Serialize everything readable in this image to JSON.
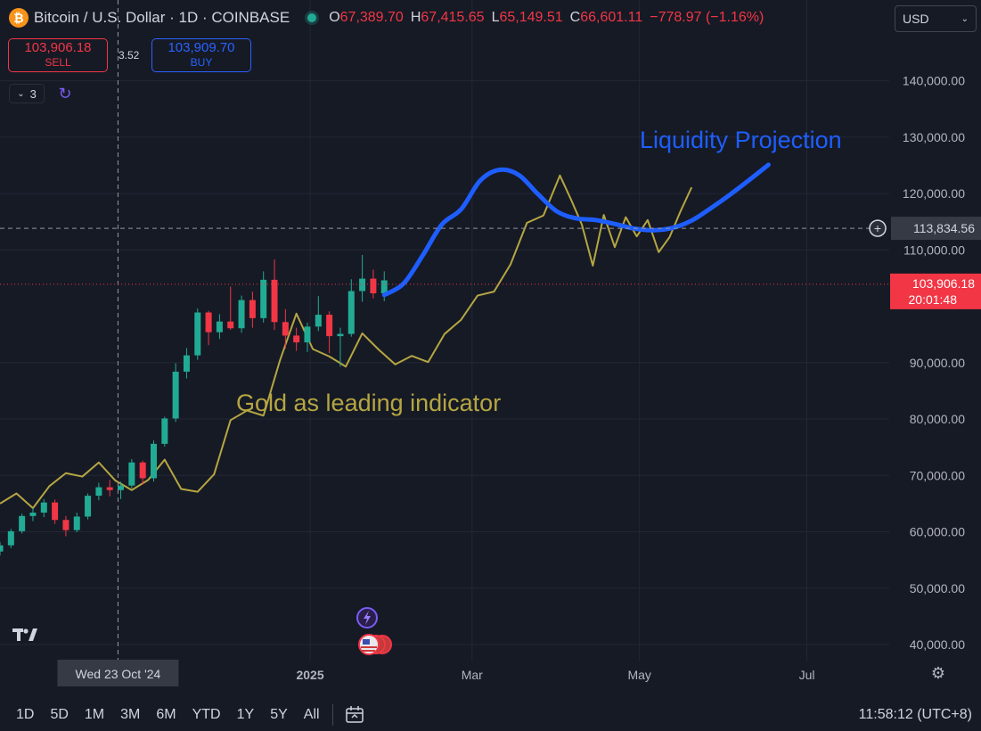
{
  "header": {
    "symbol_icon": "bitcoin-icon",
    "title": "Bitcoin / U.S. Dollar · 1D · COINBASE",
    "ohlc": {
      "o_label": "O",
      "o": "67,389.70",
      "h_label": "H",
      "h": "67,415.65",
      "l_label": "L",
      "l": "65,149.51",
      "c_label": "C",
      "c": "66,601.11",
      "change": "−778.97 (−1.16%)"
    },
    "currency": "USD"
  },
  "trade": {
    "sell_price": "103,906.18",
    "sell_label": "SELL",
    "spread": "3.52",
    "buy_price": "103,909.70",
    "buy_label": "BUY"
  },
  "indicators": {
    "count": "3"
  },
  "toolbar": {
    "timeframes": [
      "1D",
      "5D",
      "1M",
      "3M",
      "6M",
      "YTD",
      "1Y",
      "5Y",
      "All"
    ],
    "clock": "11:58:12 (UTC+8)"
  },
  "colors": {
    "background": "#161a25",
    "up": "#22ab94",
    "down": "#f23645",
    "gold": "#b5a642",
    "projection": "#1e5eff"
  },
  "chart_data": {
    "type": "line",
    "title": "",
    "price_axis": {
      "ylim": [
        37000,
        148000
      ],
      "ticks": [
        {
          "value": 140000,
          "label": "140,000.00"
        },
        {
          "value": 130000,
          "label": "130,000.00"
        },
        {
          "value": 120000,
          "label": "120,000.00"
        },
        {
          "value": 110000,
          "label": "110,000.00"
        },
        {
          "value": 90000,
          "label": "90,000.00"
        },
        {
          "value": 80000,
          "label": "80,000.00"
        },
        {
          "value": 70000,
          "label": "70,000.00"
        },
        {
          "value": 60000,
          "label": "60,000.00"
        },
        {
          "value": 50000,
          "label": "50,000.00"
        },
        {
          "value": 40000,
          "label": "40,000.00"
        }
      ]
    },
    "time_axis": {
      "xlim": [
        "2024-09-10",
        "2025-07-31"
      ],
      "ticks": [
        {
          "date": "2025-01-01",
          "label": "2025",
          "bold": true
        },
        {
          "date": "2025-03-01",
          "label": "Mar"
        },
        {
          "date": "2025-05-01",
          "label": "May"
        },
        {
          "date": "2025-07-01",
          "label": "Jul"
        }
      ]
    },
    "crosshair": {
      "date": "2024-10-23",
      "date_label": "Wed 23 Oct '24",
      "price": 113834.56,
      "price_label": "113,834.56"
    },
    "current_price": {
      "price": 103906.18,
      "price_label": "103,906.18",
      "countdown": "20:01:48"
    },
    "annotations": [
      {
        "text": "Gold as leading indicator",
        "color": "#b5a642"
      },
      {
        "text": "Liquidity Projection",
        "color": "#1e5eff"
      }
    ],
    "series": [
      {
        "kind": "candlestick",
        "ohlc": [
          [
            "2024-09-10",
            56500,
            58200,
            55800,
            57600
          ],
          [
            "2024-09-14",
            57600,
            60500,
            57100,
            60100
          ],
          [
            "2024-09-18",
            60100,
            63200,
            59700,
            62800
          ],
          [
            "2024-09-22",
            62800,
            64200,
            61900,
            63400
          ],
          [
            "2024-09-26",
            63400,
            65800,
            62600,
            65200
          ],
          [
            "2024-09-30",
            65200,
            65700,
            61400,
            62100
          ],
          [
            "2024-10-04",
            62100,
            62800,
            59200,
            60300
          ],
          [
            "2024-10-08",
            60300,
            63400,
            59900,
            62700
          ],
          [
            "2024-10-12",
            62700,
            66800,
            62200,
            66400
          ],
          [
            "2024-10-16",
            66400,
            68700,
            65600,
            67900
          ],
          [
            "2024-10-20",
            67900,
            69200,
            66300,
            67400
          ],
          [
            "2024-10-24",
            67400,
            68900,
            65800,
            68200
          ],
          [
            "2024-10-28",
            68200,
            72900,
            67700,
            72300
          ],
          [
            "2024-11-01",
            72300,
            72600,
            68400,
            69500
          ],
          [
            "2024-11-05",
            69500,
            76200,
            68900,
            75600
          ],
          [
            "2024-11-09",
            75600,
            80400,
            75100,
            80100
          ],
          [
            "2024-11-13",
            80100,
            89900,
            79500,
            88400
          ],
          [
            "2024-11-17",
            88400,
            92600,
            87200,
            91300
          ],
          [
            "2024-11-21",
            91300,
            99600,
            90500,
            98900
          ],
          [
            "2024-11-25",
            98900,
            99200,
            93100,
            95400
          ],
          [
            "2024-11-29",
            95400,
            98600,
            94200,
            97300
          ],
          [
            "2024-12-03",
            97300,
            103500,
            95800,
            96100
          ],
          [
            "2024-12-07",
            96100,
            101900,
            95300,
            101100
          ],
          [
            "2024-12-11",
            101100,
            102600,
            96200,
            97900
          ],
          [
            "2024-12-15",
            97900,
            106200,
            97100,
            104700
          ],
          [
            "2024-12-19",
            104700,
            108300,
            95800,
            97200
          ],
          [
            "2024-12-23",
            97200,
            99500,
            92500,
            94800
          ],
          [
            "2024-12-27",
            94800,
            96200,
            92100,
            93600
          ],
          [
            "2024-12-31",
            93600,
            97100,
            91900,
            96400
          ],
          [
            "2025-01-04",
            96400,
            101800,
            95600,
            98500
          ],
          [
            "2025-01-08",
            98500,
            99100,
            91700,
            94700
          ],
          [
            "2025-01-12",
            94700,
            96200,
            89300,
            95100
          ],
          [
            "2025-01-16",
            95100,
            104800,
            94600,
            102700
          ],
          [
            "2025-01-20",
            102700,
            109100,
            100800,
            104900
          ],
          [
            "2025-01-24",
            104900,
            106500,
            101400,
            102300
          ],
          [
            "2025-01-28",
            102300,
            106200,
            100900,
            104600
          ]
        ]
      },
      {
        "name": "",
        "kind": "line",
        "color": "#b5a642",
        "points": [
          [
            "2024-09-10",
            65000
          ],
          [
            "2024-09-16",
            66800
          ],
          [
            "2024-09-22",
            64200
          ],
          [
            "2024-09-28",
            68100
          ],
          [
            "2024-10-04",
            70400
          ],
          [
            "2024-10-10",
            69800
          ],
          [
            "2024-10-16",
            72300
          ],
          [
            "2024-10-22",
            69100
          ],
          [
            "2024-10-28",
            67400
          ],
          [
            "2024-11-03",
            69200
          ],
          [
            "2024-11-09",
            72800
          ],
          [
            "2024-11-15",
            67600
          ],
          [
            "2024-11-21",
            67100
          ],
          [
            "2024-11-27",
            70200
          ],
          [
            "2024-12-03",
            79800
          ],
          [
            "2024-12-09",
            81500
          ],
          [
            "2024-12-15",
            80600
          ],
          [
            "2024-12-21",
            90400
          ],
          [
            "2024-12-27",
            98700
          ],
          [
            "2025-01-02",
            92400
          ],
          [
            "2025-01-08",
            91100
          ],
          [
            "2025-01-14",
            89300
          ],
          [
            "2025-01-20",
            95200
          ],
          [
            "2025-01-26",
            92300
          ],
          [
            "2025-02-01",
            89700
          ],
          [
            "2025-02-07",
            91200
          ],
          [
            "2025-02-13",
            90100
          ],
          [
            "2025-02-19",
            95100
          ],
          [
            "2025-02-25",
            97600
          ],
          [
            "2025-03-03",
            101900
          ],
          [
            "2025-03-09",
            102600
          ],
          [
            "2025-03-15",
            107400
          ],
          [
            "2025-03-21",
            114800
          ],
          [
            "2025-03-27",
            116100
          ],
          [
            "2025-04-02",
            123200
          ],
          [
            "2025-04-06",
            119000
          ],
          [
            "2025-04-10",
            114500
          ],
          [
            "2025-04-14",
            107200
          ],
          [
            "2025-04-18",
            116200
          ],
          [
            "2025-04-22",
            110500
          ],
          [
            "2025-04-26",
            115800
          ],
          [
            "2025-04-30",
            112400
          ],
          [
            "2025-05-04",
            115300
          ],
          [
            "2025-05-08",
            109600
          ],
          [
            "2025-05-12",
            112300
          ],
          [
            "2025-05-16",
            116900
          ],
          [
            "2025-05-20",
            121100
          ]
        ]
      },
      {
        "name": "",
        "kind": "line",
        "color": "#1e5eff",
        "points": [
          [
            "2025-01-28",
            102000
          ],
          [
            "2025-02-04",
            104000
          ],
          [
            "2025-02-11",
            109000
          ],
          [
            "2025-02-18",
            114500
          ],
          [
            "2025-02-25",
            117200
          ],
          [
            "2025-03-04",
            122300
          ],
          [
            "2025-03-11",
            124200
          ],
          [
            "2025-03-18",
            123300
          ],
          [
            "2025-03-25",
            119900
          ],
          [
            "2025-04-01",
            116800
          ],
          [
            "2025-04-08",
            115600
          ],
          [
            "2025-04-15",
            115300
          ],
          [
            "2025-04-22",
            114600
          ],
          [
            "2025-04-29",
            113800
          ],
          [
            "2025-05-06",
            113500
          ],
          [
            "2025-05-13",
            113900
          ],
          [
            "2025-05-20",
            115200
          ],
          [
            "2025-05-27",
            117400
          ],
          [
            "2025-06-03",
            119800
          ],
          [
            "2025-06-10",
            122400
          ],
          [
            "2025-06-17",
            125100
          ]
        ]
      }
    ]
  }
}
